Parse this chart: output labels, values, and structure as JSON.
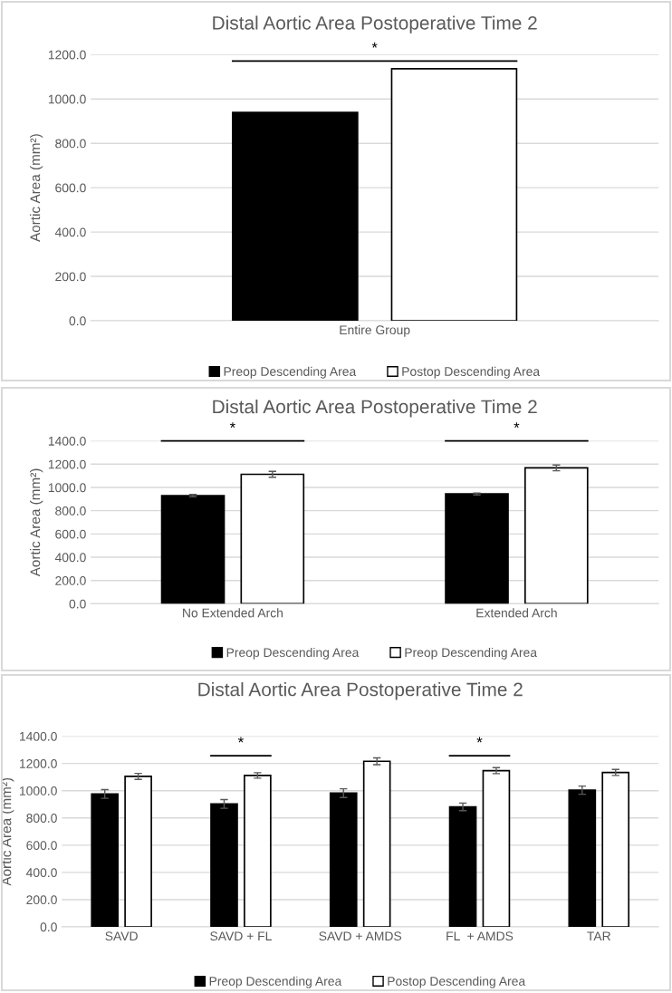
{
  "chart_data": [
    {
      "type": "bar",
      "title": "Distal Aortic Area Postoperative Time 2",
      "ylabel": "Aortic Area (mm²)",
      "categories": [
        "Entire Group"
      ],
      "series": [
        {
          "name": "Preop Descending Area",
          "color": "#000000",
          "values": [
            939
          ]
        },
        {
          "name": "Postop Descending Area",
          "color": "#ffffff",
          "values": [
            1136
          ]
        }
      ],
      "ylim": [
        0,
        1200
      ],
      "yticks": [
        {
          "value": 0,
          "label": "0.0"
        },
        {
          "value": 200,
          "label": "200.0"
        },
        {
          "value": 400,
          "label": "400.0"
        },
        {
          "value": 600,
          "label": "600.0"
        },
        {
          "value": 800,
          "label": "800.0"
        },
        {
          "value": 1000,
          "label": "1000.0"
        },
        {
          "value": 1200,
          "label": "1200.0"
        }
      ],
      "grid": "y",
      "legend": "bottom",
      "annotations": [
        "*"
      ]
    },
    {
      "type": "bar",
      "title": "Distal Aortic Area Postoperative Time 2",
      "ylabel": "Aortic Area (mm²)",
      "categories": [
        "No Extended Arch",
        "Extended Arch"
      ],
      "series": [
        {
          "name": "Preop Descending Area",
          "color": "#000000",
          "values": [
            930,
            944
          ],
          "errors": [
            10,
            8
          ]
        },
        {
          "name": "Preop Descending Area",
          "color": "#ffffff",
          "values": [
            1113,
            1168
          ],
          "errors": [
            25,
            25
          ]
        }
      ],
      "ylim": [
        0,
        1400
      ],
      "yticks": [
        {
          "value": 0,
          "label": "0.0"
        },
        {
          "value": 200,
          "label": "200.0"
        },
        {
          "value": 400,
          "label": "400.0"
        },
        {
          "value": 600,
          "label": "600.0"
        },
        {
          "value": 800,
          "label": "800.0"
        },
        {
          "value": 1000,
          "label": "1000.0"
        },
        {
          "value": 1200,
          "label": "1200.0"
        },
        {
          "value": 1400,
          "label": "1400.0"
        }
      ],
      "grid": "y",
      "legend": "bottom",
      "annotations": [
        "*",
        "*"
      ]
    },
    {
      "type": "bar",
      "title": "Distal Aortic Area Postoperative Time 2",
      "ylabel": "Aortic Area (mm²)",
      "categories": [
        "SAVD",
        "SAVD + FL",
        "SAVD + AMDS",
        "FL  + AMDS",
        "TAR"
      ],
      "series": [
        {
          "name": "Preop Descending Area",
          "color": "#000000",
          "values": [
            976,
            903,
            982,
            881,
            1004
          ],
          "errors": [
            32,
            32,
            32,
            28,
            30
          ]
        },
        {
          "name": "Postop Descending Area",
          "color": "#ffffff",
          "values": [
            1105,
            1112,
            1216,
            1147,
            1134
          ],
          "errors": [
            22,
            20,
            25,
            22,
            22
          ]
        }
      ],
      "ylim": [
        0,
        1400
      ],
      "yticks": [
        {
          "value": 0,
          "label": "0.0"
        },
        {
          "value": 200,
          "label": "200.0"
        },
        {
          "value": 400,
          "label": "400.0"
        },
        {
          "value": 600,
          "label": "600.0"
        },
        {
          "value": 800,
          "label": "800.0"
        },
        {
          "value": 1000,
          "label": "1000.0"
        },
        {
          "value": 1200,
          "label": "1200.0"
        },
        {
          "value": 1400,
          "label": "1400.0"
        }
      ],
      "grid": "y",
      "legend": "bottom",
      "annotations": [
        "*",
        "*"
      ]
    }
  ]
}
